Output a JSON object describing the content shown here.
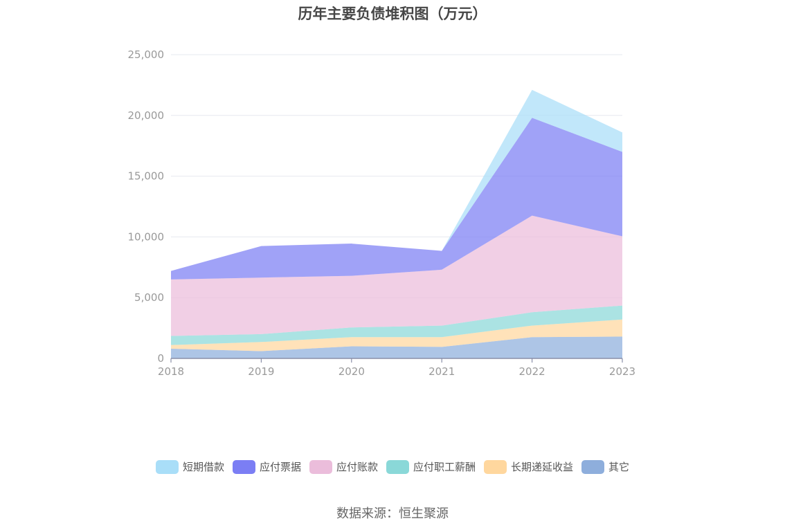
{
  "chart_data": {
    "type": "area",
    "stacked": true,
    "title": "历年主要负债堆积图（万元）",
    "x": [
      "2018",
      "2019",
      "2020",
      "2021",
      "2022",
      "2023"
    ],
    "ylim": [
      0,
      25000
    ],
    "yticks": [
      0,
      5000,
      10000,
      15000,
      20000,
      25000
    ],
    "ytick_labels": [
      "0",
      "5,000",
      "10,000",
      "15,000",
      "20,000",
      "25,000"
    ],
    "grid": true,
    "legend_position": "bottom",
    "series": [
      {
        "name": "其它",
        "color": "#8eaedc",
        "values": [
          800,
          600,
          1000,
          950,
          1750,
          1800
        ]
      },
      {
        "name": "长期递延收益",
        "color": "#ffd79e",
        "values": [
          300,
          750,
          750,
          800,
          950,
          1400
        ]
      },
      {
        "name": "应付职工薪酬",
        "color": "#8ad8d8",
        "values": [
          750,
          650,
          800,
          950,
          1100,
          1150
        ]
      },
      {
        "name": "应付账款",
        "color": "#ebbddb",
        "values": [
          4650,
          4650,
          4250,
          4600,
          7950,
          5700
        ]
      },
      {
        "name": "应付票据",
        "color": "#7b7ef4",
        "values": [
          700,
          2600,
          2650,
          1550,
          8050,
          6950
        ]
      },
      {
        "name": "短期借款",
        "color": "#a9def8",
        "values": [
          0,
          0,
          0,
          0,
          2300,
          1600
        ]
      }
    ],
    "source": "数据来源：恒生聚源"
  }
}
